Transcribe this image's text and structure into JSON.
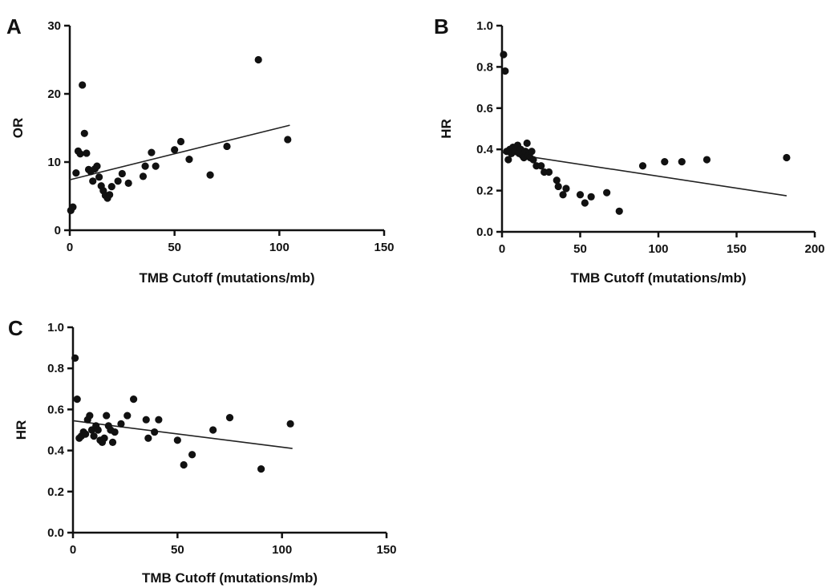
{
  "chart_data": [
    {
      "type": "scatter",
      "panel_label": "A",
      "xlabel": "TMB Cutoff (mutations/mb)",
      "ylabel": "OR",
      "xlim": [
        0,
        150
      ],
      "ylim": [
        0,
        30
      ],
      "xticks": [
        0,
        50,
        100,
        150
      ],
      "yticks": [
        0,
        10,
        20,
        30
      ],
      "grid": false,
      "trendline": {
        "x": [
          0,
          105
        ],
        "y": [
          7.4,
          15.4
        ]
      },
      "points": [
        {
          "x": 0.5,
          "y": 2.9
        },
        {
          "x": 1.5,
          "y": 3.4
        },
        {
          "x": 3,
          "y": 8.4
        },
        {
          "x": 4,
          "y": 11.6
        },
        {
          "x": 5,
          "y": 11.2
        },
        {
          "x": 6,
          "y": 21.3
        },
        {
          "x": 7,
          "y": 14.2
        },
        {
          "x": 8,
          "y": 11.3
        },
        {
          "x": 9,
          "y": 8.9
        },
        {
          "x": 10,
          "y": 8.6
        },
        {
          "x": 11,
          "y": 7.2
        },
        {
          "x": 12,
          "y": 9.0
        },
        {
          "x": 13,
          "y": 9.4
        },
        {
          "x": 14,
          "y": 7.8
        },
        {
          "x": 15,
          "y": 6.5
        },
        {
          "x": 16,
          "y": 5.8
        },
        {
          "x": 17,
          "y": 5.1
        },
        {
          "x": 18,
          "y": 4.7
        },
        {
          "x": 19,
          "y": 5.2
        },
        {
          "x": 20,
          "y": 6.4
        },
        {
          "x": 23,
          "y": 7.2
        },
        {
          "x": 25,
          "y": 8.3
        },
        {
          "x": 28,
          "y": 6.9
        },
        {
          "x": 35,
          "y": 7.9
        },
        {
          "x": 36,
          "y": 9.4
        },
        {
          "x": 39,
          "y": 11.4
        },
        {
          "x": 41,
          "y": 9.4
        },
        {
          "x": 50,
          "y": 11.8
        },
        {
          "x": 53,
          "y": 13.0
        },
        {
          "x": 57,
          "y": 10.4
        },
        {
          "x": 67,
          "y": 8.1
        },
        {
          "x": 75,
          "y": 12.3
        },
        {
          "x": 90,
          "y": 25.0
        },
        {
          "x": 104,
          "y": 13.3
        }
      ]
    },
    {
      "type": "scatter",
      "panel_label": "B",
      "xlabel": "TMB Cutoff (mutations/mb)",
      "ylabel": "HR",
      "xlim": [
        0,
        200
      ],
      "ylim": [
        0,
        1.0
      ],
      "xticks": [
        0,
        50,
        100,
        150,
        200
      ],
      "yticks": [
        0.0,
        0.2,
        0.4,
        0.6,
        0.8,
        1.0
      ],
      "ytick_decimals": 1,
      "grid": false,
      "trendline": {
        "x": [
          0,
          182
        ],
        "y": [
          0.385,
          0.175
        ]
      },
      "points": [
        {
          "x": 1,
          "y": 0.86
        },
        {
          "x": 2,
          "y": 0.78
        },
        {
          "x": 3,
          "y": 0.39
        },
        {
          "x": 4,
          "y": 0.35
        },
        {
          "x": 5,
          "y": 0.4
        },
        {
          "x": 6,
          "y": 0.38
        },
        {
          "x": 7,
          "y": 0.41
        },
        {
          "x": 8,
          "y": 0.39
        },
        {
          "x": 9,
          "y": 0.4
        },
        {
          "x": 10,
          "y": 0.42
        },
        {
          "x": 11,
          "y": 0.38
        },
        {
          "x": 12,
          "y": 0.4
        },
        {
          "x": 13,
          "y": 0.37
        },
        {
          "x": 14,
          "y": 0.36
        },
        {
          "x": 15,
          "y": 0.39
        },
        {
          "x": 16,
          "y": 0.43
        },
        {
          "x": 17,
          "y": 0.37
        },
        {
          "x": 18,
          "y": 0.36
        },
        {
          "x": 19,
          "y": 0.39
        },
        {
          "x": 20,
          "y": 0.35
        },
        {
          "x": 22,
          "y": 0.32
        },
        {
          "x": 25,
          "y": 0.32
        },
        {
          "x": 27,
          "y": 0.29
        },
        {
          "x": 30,
          "y": 0.29
        },
        {
          "x": 35,
          "y": 0.25
        },
        {
          "x": 36,
          "y": 0.22
        },
        {
          "x": 39,
          "y": 0.18
        },
        {
          "x": 41,
          "y": 0.21
        },
        {
          "x": 50,
          "y": 0.18
        },
        {
          "x": 53,
          "y": 0.14
        },
        {
          "x": 57,
          "y": 0.17
        },
        {
          "x": 67,
          "y": 0.19
        },
        {
          "x": 75,
          "y": 0.1
        },
        {
          "x": 90,
          "y": 0.32
        },
        {
          "x": 104,
          "y": 0.34
        },
        {
          "x": 115,
          "y": 0.34
        },
        {
          "x": 131,
          "y": 0.35
        },
        {
          "x": 182,
          "y": 0.36
        }
      ]
    },
    {
      "type": "scatter",
      "panel_label": "C",
      "xlabel": "TMB Cutoff (mutations/mb)",
      "ylabel": "HR",
      "xlim": [
        0,
        150
      ],
      "ylim": [
        0,
        1.0
      ],
      "xticks": [
        0,
        50,
        100,
        150
      ],
      "yticks": [
        0.0,
        0.2,
        0.4,
        0.6,
        0.8,
        1.0
      ],
      "ytick_decimals": 1,
      "grid": false,
      "trendline": {
        "x": [
          0,
          105
        ],
        "y": [
          0.545,
          0.41
        ]
      },
      "points": [
        {
          "x": 1,
          "y": 0.85
        },
        {
          "x": 2,
          "y": 0.65
        },
        {
          "x": 3,
          "y": 0.46
        },
        {
          "x": 4,
          "y": 0.47
        },
        {
          "x": 5,
          "y": 0.49
        },
        {
          "x": 6,
          "y": 0.48
        },
        {
          "x": 7,
          "y": 0.55
        },
        {
          "x": 8,
          "y": 0.57
        },
        {
          "x": 9,
          "y": 0.5
        },
        {
          "x": 10,
          "y": 0.47
        },
        {
          "x": 11,
          "y": 0.52
        },
        {
          "x": 12,
          "y": 0.5
        },
        {
          "x": 13,
          "y": 0.45
        },
        {
          "x": 14,
          "y": 0.44
        },
        {
          "x": 15,
          "y": 0.46
        },
        {
          "x": 16,
          "y": 0.57
        },
        {
          "x": 17,
          "y": 0.52
        },
        {
          "x": 18,
          "y": 0.5
        },
        {
          "x": 19,
          "y": 0.44
        },
        {
          "x": 20,
          "y": 0.49
        },
        {
          "x": 23,
          "y": 0.53
        },
        {
          "x": 26,
          "y": 0.57
        },
        {
          "x": 29,
          "y": 0.65
        },
        {
          "x": 35,
          "y": 0.55
        },
        {
          "x": 36,
          "y": 0.46
        },
        {
          "x": 39,
          "y": 0.49
        },
        {
          "x": 41,
          "y": 0.55
        },
        {
          "x": 50,
          "y": 0.45
        },
        {
          "x": 53,
          "y": 0.33
        },
        {
          "x": 57,
          "y": 0.38
        },
        {
          "x": 67,
          "y": 0.5
        },
        {
          "x": 75,
          "y": 0.56
        },
        {
          "x": 90,
          "y": 0.31
        },
        {
          "x": 104,
          "y": 0.53
        }
      ]
    }
  ]
}
